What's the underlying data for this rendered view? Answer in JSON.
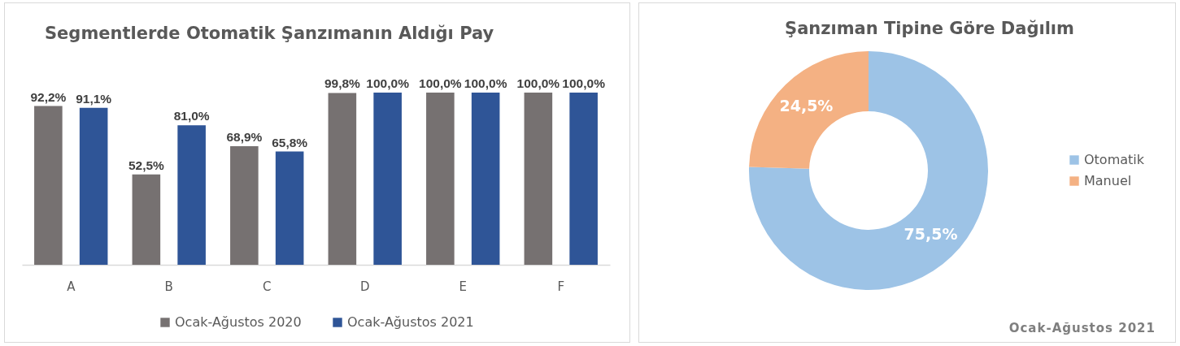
{
  "chart_data": [
    {
      "type": "bar",
      "title": "Segmentlerde Otomatik Şanzımanın Aldığı Pay",
      "categories": [
        "A",
        "B",
        "C",
        "D",
        "E",
        "F"
      ],
      "series": [
        {
          "name": "Ocak-Ağustos 2020",
          "color": "#767171",
          "values": [
            92.2,
            52.5,
            68.9,
            99.8,
            100.0,
            100.0
          ],
          "value_labels": [
            "92,2%",
            "52,5%",
            "68,9%",
            "99,8%",
            "100,0%",
            "100,0%"
          ]
        },
        {
          "name": "Ocak-Ağustos 2021",
          "color": "#2f5597",
          "values": [
            91.1,
            81.0,
            65.8,
            100.0,
            100.0,
            100.0
          ],
          "value_labels": [
            "91,1%",
            "81,0%",
            "65,8%",
            "100,0%",
            "100,0%",
            "100,0%"
          ]
        }
      ],
      "legend": "bottom",
      "tick_labels": "x"
    },
    {
      "type": "donut",
      "title": "Şanzıman Tipine Göre Dağılım",
      "categories": [
        "Otomatik",
        "Manuel"
      ],
      "values": [
        75.5,
        24.5
      ],
      "colors": [
        "#9dc3e6",
        "#f4b183"
      ],
      "value_labels": [
        "75,5%",
        "24,5%"
      ],
      "legend": "right",
      "annotations": [
        "Ocak-Ağustos 2021"
      ]
    }
  ]
}
